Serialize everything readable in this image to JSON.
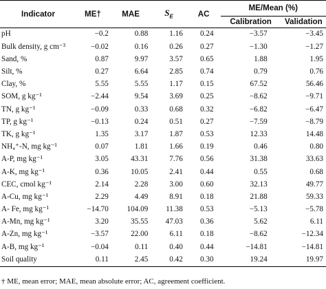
{
  "headers": {
    "indicator": "Indicator",
    "me": "ME†",
    "mae": "MAE",
    "se_symbol": "S",
    "se_sub": "E",
    "ac": "AC",
    "group": "ME/Mean (%)",
    "calibration": "Calibration",
    "validation": "Validation"
  },
  "rows": [
    {
      "indicator": "pH",
      "me": "−0.2",
      "mae": "0.88",
      "se": "1.16",
      "ac": "0.24",
      "cal": "−3.57",
      "val": "−3.45"
    },
    {
      "indicator": "Bulk density, g cm⁻³",
      "me": "−0.02",
      "mae": "0.16",
      "se": "0.26",
      "ac": "0.27",
      "cal": "−1.30",
      "val": "−1.27"
    },
    {
      "indicator": "Sand, %",
      "me": "0.87",
      "mae": "9.97",
      "se": "3.57",
      "ac": "0.65",
      "cal": "1.88",
      "val": "1.95"
    },
    {
      "indicator": "Silt, %",
      "me": "0.27",
      "mae": "6.64",
      "se": "2.85",
      "ac": "0.74",
      "cal": "0.79",
      "val": "0.76"
    },
    {
      "indicator": "Clay, %",
      "me": "5.55",
      "mae": "5.55",
      "se": "1.17",
      "ac": "0.15",
      "cal": "67.52",
      "val": "56.46"
    },
    {
      "indicator": "SOM, g kg⁻¹",
      "me": "−2.44",
      "mae": "9.54",
      "se": "3.69",
      "ac": "0.25",
      "cal": "−8.62",
      "val": "−9.71"
    },
    {
      "indicator": "TN, g kg⁻¹",
      "me": "−0.09",
      "mae": "0.33",
      "se": "0.68",
      "ac": "0.32",
      "cal": "−6.82",
      "val": "−6.47"
    },
    {
      "indicator": "TP, g kg⁻¹",
      "me": "−0.13",
      "mae": "0.24",
      "se": "0.51",
      "ac": "0.27",
      "cal": "−7.59",
      "val": "−8.79"
    },
    {
      "indicator": "TK, g kg⁻¹",
      "me": "1.35",
      "mae": "3.17",
      "se": "1.87",
      "ac": "0.53",
      "cal": "12.33",
      "val": "14.48"
    },
    {
      "indicator": "NH₄⁺-N, mg kg⁻¹",
      "me": "0.07",
      "mae": "1.81",
      "se": "1.66",
      "ac": "0.19",
      "cal": "0.46",
      "val": "0.80"
    },
    {
      "indicator": "A-P, mg kg⁻¹",
      "me": "3.05",
      "mae": "43.31",
      "se": "7.76",
      "ac": "0.56",
      "cal": "31.38",
      "val": "33.63"
    },
    {
      "indicator": "A-K, mg kg⁻¹",
      "me": "0.36",
      "mae": "10.05",
      "se": "2.41",
      "ac": "0.44",
      "cal": "0.55",
      "val": "0.68"
    },
    {
      "indicator": "CEC, cmol kg⁻¹",
      "me": "2.14",
      "mae": "2.28",
      "se": "3.00",
      "ac": "0.60",
      "cal": "32.13",
      "val": "49.77"
    },
    {
      "indicator": "A-Cu, mg kg⁻¹",
      "me": "2.29",
      "mae": "4.49",
      "se": "8.91",
      "ac": "0.18",
      "cal": "21.88",
      "val": "59.33"
    },
    {
      "indicator": "A- Fe, mg kg⁻¹",
      "me": "−14.70",
      "mae": "104.09",
      "se": "11.38",
      "ac": "0.53",
      "cal": "−5.13",
      "val": "−5.78"
    },
    {
      "indicator": "A-Mn, mg kg⁻¹",
      "me": "3.20",
      "mae": "35.55",
      "se": "47.03",
      "ac": "0.36",
      "cal": "5.62",
      "val": "6.11"
    },
    {
      "indicator": "A-Zn, mg kg⁻¹",
      "me": "−3.57",
      "mae": "22.00",
      "se": "6.11",
      "ac": "0.18",
      "cal": "−8.62",
      "val": "−12.34"
    },
    {
      "indicator": "A-B, mg kg⁻¹",
      "me": "−0.04",
      "mae": "0.11",
      "se": "0.40",
      "ac": "0.44",
      "cal": "−14.81",
      "val": "−14.81"
    },
    {
      "indicator": "Soil quality",
      "me": "0.11",
      "mae": "2.45",
      "se": "0.42",
      "ac": "0.30",
      "cal": "19.24",
      "val": "19.97"
    }
  ],
  "footnote": "† ME, mean error; MAE, mean absolute error; AC, agreement coefficient."
}
